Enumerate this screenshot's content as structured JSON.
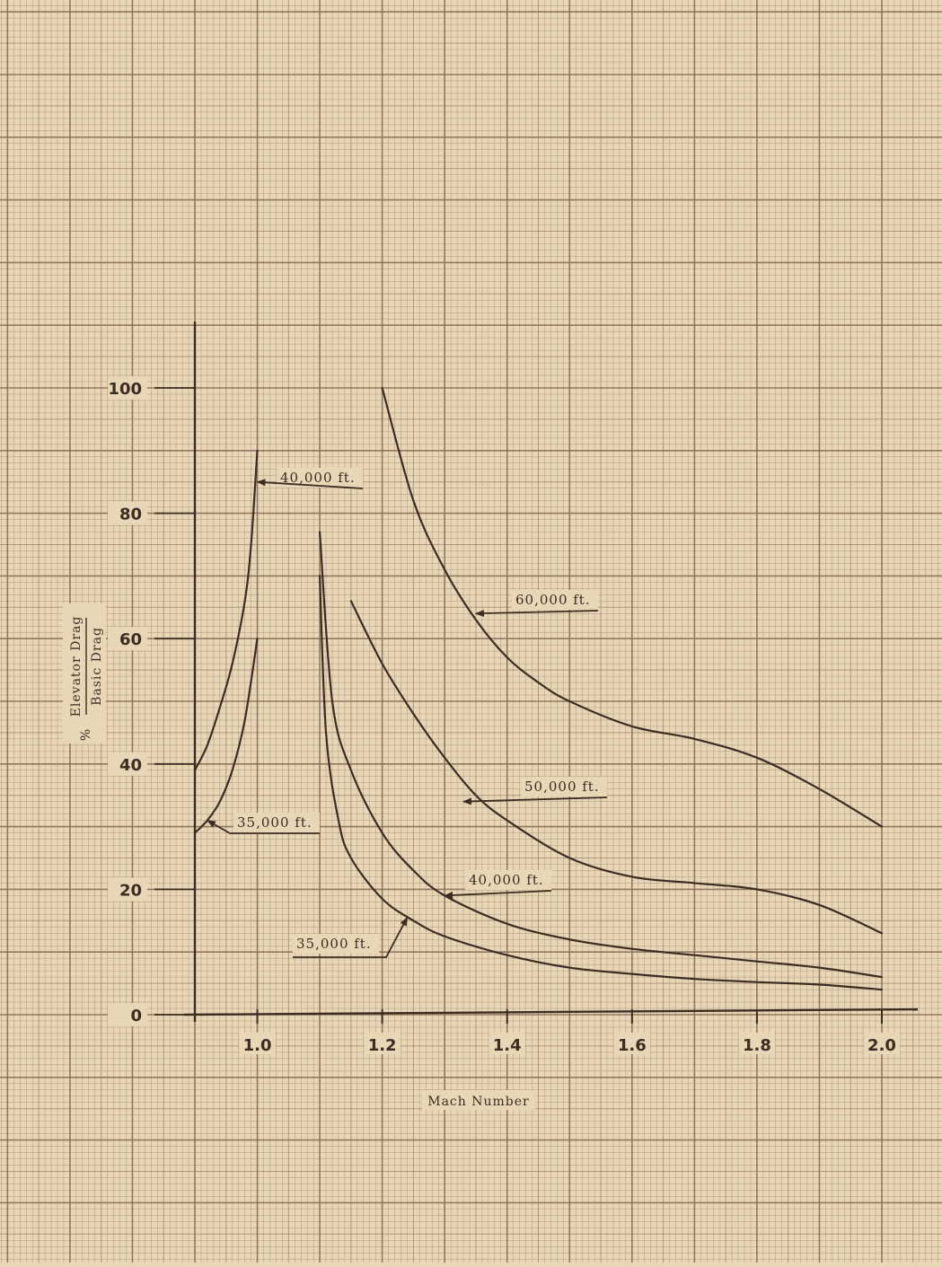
{
  "chart_data": {
    "type": "line",
    "title": "",
    "xlabel": "Mach Number",
    "ylabel": {
      "prefix": "%",
      "numerator": "Elevator Drag",
      "denominator": "Basic Drag"
    },
    "xlim": [
      0.9,
      2.0
    ],
    "ylim": [
      0,
      110
    ],
    "x_ticks": [
      {
        "value": 1.0,
        "label": "1.0"
      },
      {
        "value": 1.2,
        "label": "1.2"
      },
      {
        "value": 1.4,
        "label": "1.4"
      },
      {
        "value": 1.6,
        "label": "1.6"
      },
      {
        "value": 1.8,
        "label": "1.8"
      },
      {
        "value": 2.0,
        "label": "2.0"
      }
    ],
    "y_ticks": [
      {
        "value": 0,
        "label": "0"
      },
      {
        "value": 20,
        "label": "20"
      },
      {
        "value": 40,
        "label": "40"
      },
      {
        "value": 60,
        "label": "60"
      },
      {
        "value": 80,
        "label": "80"
      },
      {
        "value": 100,
        "label": "100"
      }
    ],
    "grid": true,
    "series": [
      {
        "name": "40,000 ft.",
        "regime": "transonic",
        "x": [
          0.9,
          0.92,
          0.94,
          0.96,
          0.98,
          0.99,
          1.0
        ],
        "y": [
          39,
          43,
          49,
          56,
          66,
          75,
          90
        ]
      },
      {
        "name": "35,000 ft.",
        "regime": "transonic",
        "x": [
          0.9,
          0.92,
          0.94,
          0.96,
          0.98,
          1.0
        ],
        "y": [
          29,
          31,
          34,
          39,
          47,
          60
        ]
      },
      {
        "name": "60,000 ft.",
        "regime": "supersonic",
        "x": [
          1.2,
          1.25,
          1.3,
          1.35,
          1.4,
          1.45,
          1.5,
          1.6,
          1.7,
          1.8,
          1.9,
          2.0
        ],
        "y": [
          100,
          82,
          71,
          63,
          57,
          53,
          50,
          46,
          44,
          41,
          36,
          30
        ]
      },
      {
        "name": "50,000 ft.",
        "regime": "supersonic",
        "x": [
          1.15,
          1.2,
          1.25,
          1.3,
          1.35,
          1.4,
          1.5,
          1.6,
          1.7,
          1.8,
          1.9,
          2.0
        ],
        "y": [
          66,
          56,
          48,
          41,
          35,
          31,
          25,
          22,
          21,
          20,
          17.5,
          13
        ]
      },
      {
        "name": "40,000 ft.",
        "regime": "supersonic",
        "x": [
          1.1,
          1.12,
          1.15,
          1.2,
          1.25,
          1.3,
          1.4,
          1.5,
          1.6,
          1.7,
          1.8,
          1.9,
          2.0
        ],
        "y": [
          77,
          50,
          39,
          29,
          23,
          19,
          14.5,
          12,
          10.5,
          9.5,
          8.5,
          7.5,
          6
        ]
      },
      {
        "name": "35,000 ft.",
        "regime": "supersonic",
        "x": [
          1.1,
          1.11,
          1.13,
          1.15,
          1.2,
          1.25,
          1.3,
          1.4,
          1.5,
          1.6,
          1.7,
          1.8,
          1.9,
          2.0
        ],
        "y": [
          70,
          45,
          31,
          25,
          18.5,
          15,
          12.5,
          9.5,
          7.5,
          6.5,
          5.7,
          5.2,
          4.8,
          4
        ]
      }
    ],
    "annotations": [
      {
        "text": "40,000 ft.",
        "series_index": 0,
        "point": [
          1.0,
          85
        ]
      },
      {
        "text": "35,000 ft.",
        "series_index": 1,
        "point": [
          0.92,
          31
        ]
      },
      {
        "text": "60,000 ft.",
        "series_index": 2,
        "point": [
          1.35,
          64
        ]
      },
      {
        "text": "50,000 ft.",
        "series_index": 3,
        "point": [
          1.33,
          34
        ]
      },
      {
        "text": "40,000 ft.",
        "series_index": 4,
        "point": [
          1.3,
          19
        ]
      },
      {
        "text": "35,000 ft.",
        "series_index": 5,
        "point": [
          1.24,
          15.5
        ]
      }
    ],
    "colors": {
      "paper": "#e9d6b7",
      "grid": "#8a6e58",
      "ink": "#3d2c22"
    }
  }
}
